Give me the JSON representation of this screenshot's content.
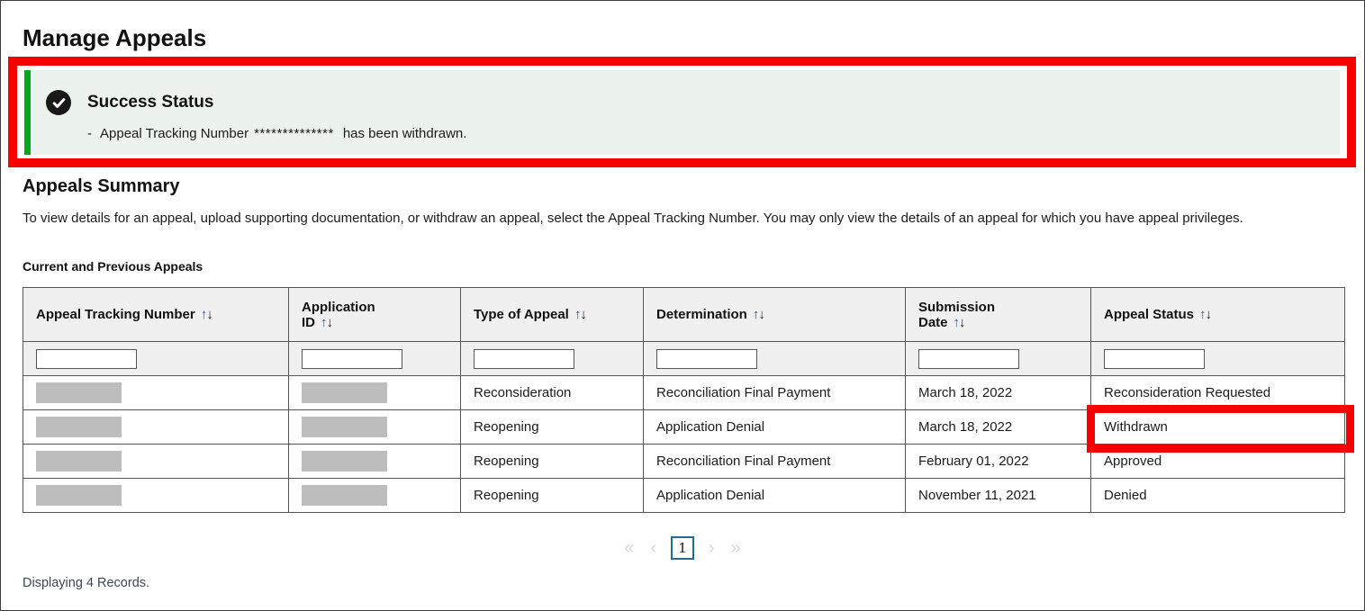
{
  "page": {
    "title": "Manage Appeals"
  },
  "icons": {
    "success_check": "check-circle-icon",
    "sort_asc": "↑",
    "sort_desc": "↓"
  },
  "colors": {
    "annotation_red": "#f70000",
    "success_green": "#00a91c",
    "success_background": "#ecf3ec",
    "pagination_active_border": "#1f6d9c",
    "redaction_gray": "#bdbdbd"
  },
  "success_banner": {
    "title": "Success Status",
    "item_dash": "-",
    "message_prefix": "Appeal Tracking Number",
    "masked_tracking_number": "**************",
    "message_suffix": "has been withdrawn."
  },
  "summary": {
    "heading": "Appeals Summary",
    "description": "To view details for an appeal, upload supporting documentation, or withdraw an appeal, select the Appeal Tracking Number. You may only view the details of an appeal for which you have appeal privileges.",
    "table_caption": "Current and Previous Appeals"
  },
  "table": {
    "columns": [
      {
        "id": "appeal-tracking-number",
        "label": "Appeal Tracking Number",
        "sortable": true
      },
      {
        "id": "application-id",
        "label": "Application\nID",
        "sortable": true
      },
      {
        "id": "type-of-appeal",
        "label": "Type of Appeal",
        "sortable": true
      },
      {
        "id": "determination",
        "label": "Determination",
        "sortable": true
      },
      {
        "id": "submission-date",
        "label": "Submission\nDate",
        "sortable": true
      },
      {
        "id": "appeal-status",
        "label": "Appeal Status",
        "sortable": true
      }
    ],
    "rows": [
      {
        "cells": [
          {
            "redacted": true
          },
          {
            "redacted": true
          },
          {
            "text": "Reconsideration"
          },
          {
            "text": "Reconciliation Final Payment"
          },
          {
            "text": "March 18, 2022"
          },
          {
            "text": "Reconsideration Requested"
          }
        ]
      },
      {
        "cells": [
          {
            "redacted": true
          },
          {
            "redacted": true
          },
          {
            "text": "Reopening"
          },
          {
            "text": "Application Denial"
          },
          {
            "text": "March 18, 2022"
          },
          {
            "text": "Withdrawn",
            "annotated": true
          }
        ]
      },
      {
        "cells": [
          {
            "redacted": true
          },
          {
            "redacted": true
          },
          {
            "text": "Reopening"
          },
          {
            "text": "Reconciliation Final Payment"
          },
          {
            "text": "February 01, 2022"
          },
          {
            "text": "Approved"
          }
        ]
      },
      {
        "cells": [
          {
            "redacted": true
          },
          {
            "redacted": true
          },
          {
            "text": "Reopening"
          },
          {
            "text": "Application Denial"
          },
          {
            "text": "November 11, 2021"
          },
          {
            "text": "Denied"
          }
        ]
      }
    ]
  },
  "pagination": {
    "first_icon": "«",
    "prev_icon": "‹",
    "current_page": "1",
    "next_icon": "›",
    "last_icon": "»"
  },
  "footer": {
    "records_text": "Displaying 4 Records."
  }
}
